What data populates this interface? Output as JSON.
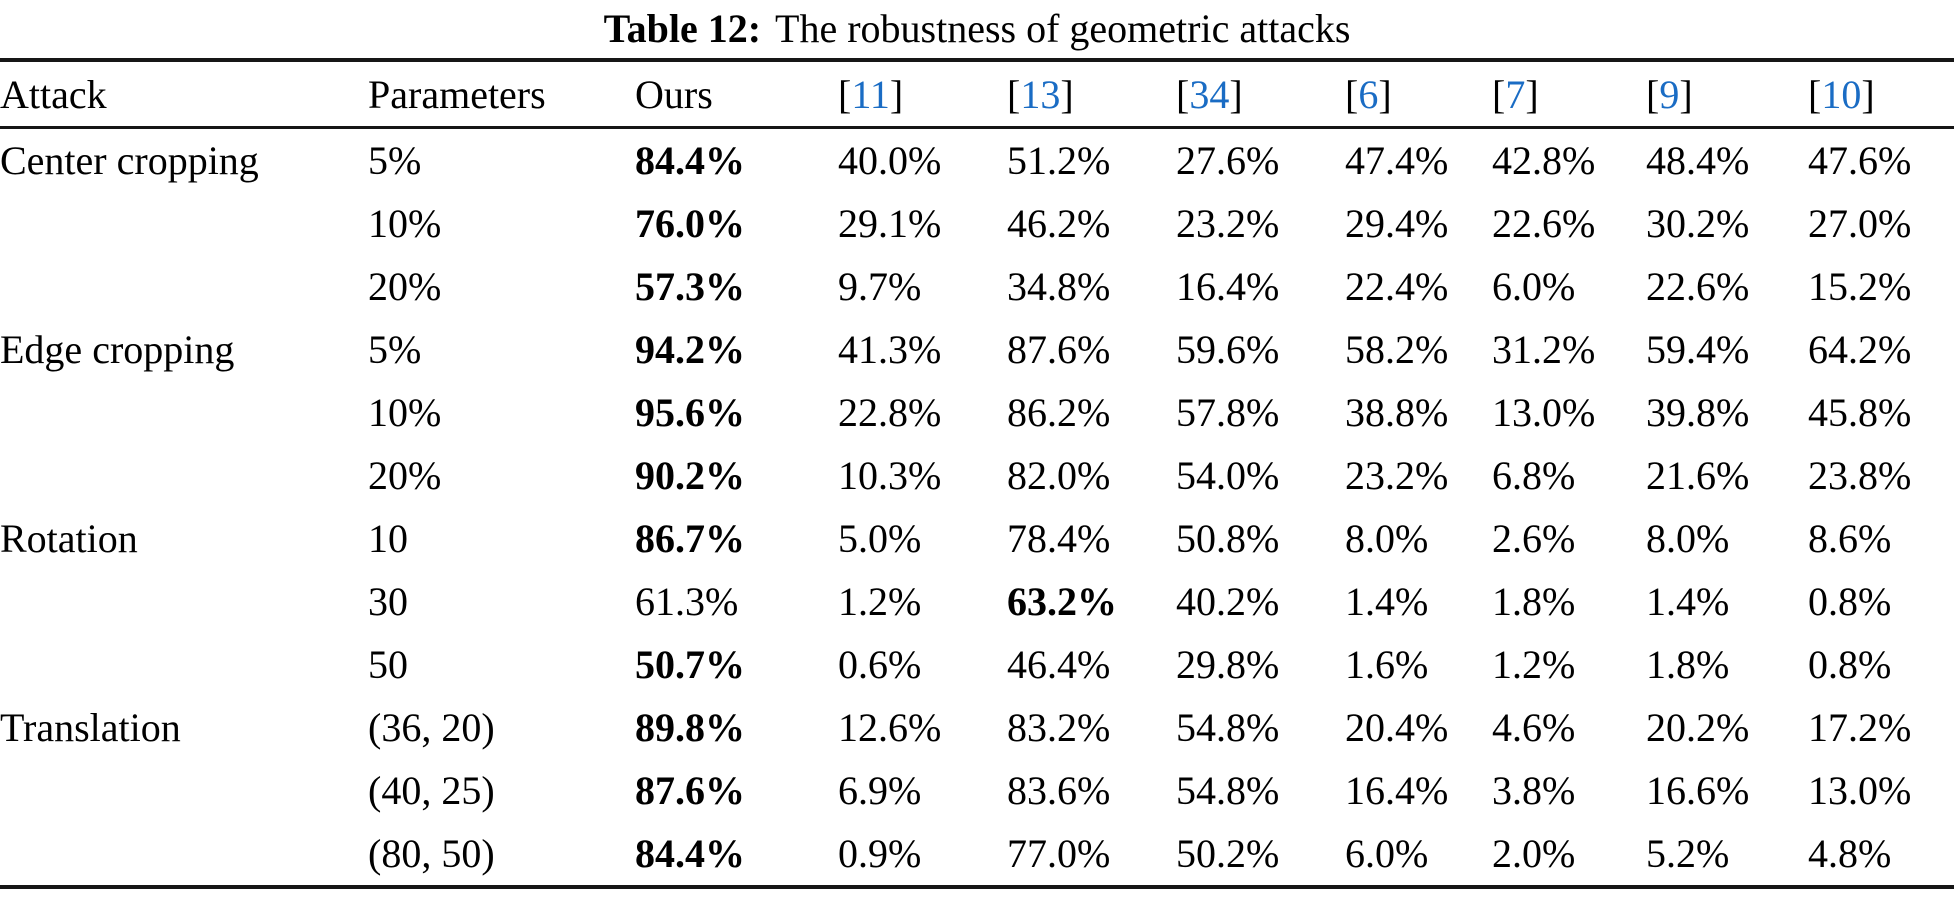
{
  "caption": {
    "label": "Table 12:",
    "text": "The robustness of geometric attacks"
  },
  "colors": {
    "citation": "#1a6cc4",
    "text": "#000000",
    "rule": "#161616",
    "background": "#ffffff"
  },
  "chart_data": {
    "type": "table",
    "title": "Table 12: The robustness of geometric attacks",
    "columns": [
      "Attack",
      "Parameters",
      "Ours",
      "[11]",
      "[13]",
      "[34]",
      "[6]",
      "[7]",
      "[9]",
      "[10]"
    ]
  },
  "table": {
    "headers": [
      {
        "text": "Attack"
      },
      {
        "text": "Parameters"
      },
      {
        "text": "Ours"
      },
      {
        "cite": "11"
      },
      {
        "cite": "13"
      },
      {
        "cite": "34"
      },
      {
        "cite": "6"
      },
      {
        "cite": "7"
      },
      {
        "cite": "9"
      },
      {
        "cite": "10"
      }
    ],
    "rows": [
      {
        "attack": "Center cropping",
        "parameters": "5%",
        "cells": [
          "84.4%",
          "40.0%",
          "51.2%",
          "27.6%",
          "47.4%",
          "42.8%",
          "48.4%",
          "47.6%"
        ],
        "bold_cell": 0
      },
      {
        "attack": "",
        "parameters": "10%",
        "cells": [
          "76.0%",
          "29.1%",
          "46.2%",
          "23.2%",
          "29.4%",
          "22.6%",
          "30.2%",
          "27.0%"
        ],
        "bold_cell": 0
      },
      {
        "attack": "",
        "parameters": "20%",
        "cells": [
          "57.3%",
          "9.7%",
          "34.8%",
          "16.4%",
          "22.4%",
          "6.0%",
          "22.6%",
          "15.2%"
        ],
        "bold_cell": 0
      },
      {
        "attack": "Edge cropping",
        "parameters": "5%",
        "cells": [
          "94.2%",
          "41.3%",
          "87.6%",
          "59.6%",
          "58.2%",
          "31.2%",
          "59.4%",
          "64.2%"
        ],
        "bold_cell": 0
      },
      {
        "attack": "",
        "parameters": "10%",
        "cells": [
          "95.6%",
          "22.8%",
          "86.2%",
          "57.8%",
          "38.8%",
          "13.0%",
          "39.8%",
          "45.8%"
        ],
        "bold_cell": 0
      },
      {
        "attack": "",
        "parameters": "20%",
        "cells": [
          "90.2%",
          "10.3%",
          "82.0%",
          "54.0%",
          "23.2%",
          "6.8%",
          "21.6%",
          "23.8%"
        ],
        "bold_cell": 0
      },
      {
        "attack": "Rotation",
        "parameters": "10",
        "cells": [
          "86.7%",
          "5.0%",
          "78.4%",
          "50.8%",
          "8.0%",
          "2.6%",
          "8.0%",
          "8.6%"
        ],
        "bold_cell": 0
      },
      {
        "attack": "",
        "parameters": "30",
        "cells": [
          "61.3%",
          "1.2%",
          "63.2%",
          "40.2%",
          "1.4%",
          "1.8%",
          "1.4%",
          "0.8%"
        ],
        "bold_cell": 2
      },
      {
        "attack": "",
        "parameters": "50",
        "cells": [
          "50.7%",
          "0.6%",
          "46.4%",
          "29.8%",
          "1.6%",
          "1.2%",
          "1.8%",
          "0.8%"
        ],
        "bold_cell": 0
      },
      {
        "attack": "Translation",
        "parameters": "(36, 20)",
        "cells": [
          "89.8%",
          "12.6%",
          "83.2%",
          "54.8%",
          "20.4%",
          "4.6%",
          "20.2%",
          "17.2%"
        ],
        "bold_cell": 0
      },
      {
        "attack": "",
        "parameters": "(40, 25)",
        "cells": [
          "87.6%",
          "6.9%",
          "83.6%",
          "54.8%",
          "16.4%",
          "3.8%",
          "16.6%",
          "13.0%"
        ],
        "bold_cell": 0
      },
      {
        "attack": "",
        "parameters": "(80, 50)",
        "cells": [
          "84.4%",
          "0.9%",
          "77.0%",
          "50.2%",
          "6.0%",
          "2.0%",
          "5.2%",
          "4.8%"
        ],
        "bold_cell": 0
      }
    ]
  }
}
